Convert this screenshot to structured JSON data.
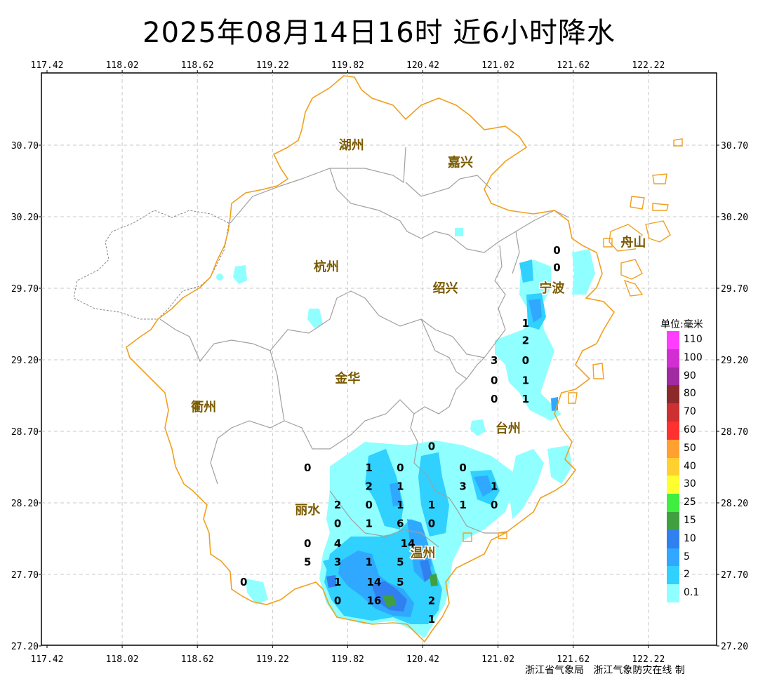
{
  "title": "2025年08月14日16时  近6小时降水",
  "axes": {
    "lon_ticks": [
      "117.42",
      "118.02",
      "118.62",
      "119.22",
      "119.82",
      "120.42",
      "121.02",
      "121.62",
      "122.22"
    ],
    "lat_ticks": [
      "30.70",
      "30.20",
      "29.70",
      "29.20",
      "28.70",
      "28.20",
      "27.70",
      "27.20"
    ],
    "grid": "dashed"
  },
  "cities": [
    {
      "name": "湖州",
      "lon": 119.85,
      "lat": 30.7
    },
    {
      "name": "嘉兴",
      "lon": 120.72,
      "lat": 30.58
    },
    {
      "name": "杭州",
      "lon": 119.65,
      "lat": 29.85
    },
    {
      "name": "绍兴",
      "lon": 120.6,
      "lat": 29.7
    },
    {
      "name": "宁波",
      "lon": 121.45,
      "lat": 29.7
    },
    {
      "name": "舟山",
      "lon": 122.1,
      "lat": 30.02
    },
    {
      "name": "金华",
      "lon": 119.82,
      "lat": 29.07
    },
    {
      "name": "衢州",
      "lon": 118.67,
      "lat": 28.87
    },
    {
      "name": "台州",
      "lon": 121.1,
      "lat": 28.72
    },
    {
      "name": "丽水",
      "lon": 119.5,
      "lat": 28.15
    },
    {
      "name": "温州",
      "lon": 120.42,
      "lat": 27.85
    }
  ],
  "stations": [
    {
      "v": "0",
      "lon": 121.49,
      "lat": 29.97
    },
    {
      "v": "0",
      "lon": 121.49,
      "lat": 29.85
    },
    {
      "v": "1",
      "lon": 121.24,
      "lat": 29.46
    },
    {
      "v": "2",
      "lon": 121.24,
      "lat": 29.34
    },
    {
      "v": "3",
      "lon": 120.99,
      "lat": 29.2
    },
    {
      "v": "0",
      "lon": 121.24,
      "lat": 29.2
    },
    {
      "v": "0",
      "lon": 120.99,
      "lat": 29.06
    },
    {
      "v": "1",
      "lon": 121.24,
      "lat": 29.06
    },
    {
      "v": "0",
      "lon": 120.99,
      "lat": 28.93
    },
    {
      "v": "1",
      "lon": 121.24,
      "lat": 28.93
    },
    {
      "v": "0",
      "lon": 120.49,
      "lat": 28.6
    },
    {
      "v": "0",
      "lon": 119.5,
      "lat": 28.45
    },
    {
      "v": "1",
      "lon": 119.99,
      "lat": 28.45
    },
    {
      "v": "0",
      "lon": 120.24,
      "lat": 28.45
    },
    {
      "v": "0",
      "lon": 120.74,
      "lat": 28.45
    },
    {
      "v": "2",
      "lon": 119.99,
      "lat": 28.32
    },
    {
      "v": "1",
      "lon": 120.24,
      "lat": 28.32
    },
    {
      "v": "3",
      "lon": 120.74,
      "lat": 28.32
    },
    {
      "v": "1",
      "lon": 120.99,
      "lat": 28.32
    },
    {
      "v": "2",
      "lon": 119.74,
      "lat": 28.19
    },
    {
      "v": "0",
      "lon": 119.99,
      "lat": 28.19
    },
    {
      "v": "1",
      "lon": 120.24,
      "lat": 28.19
    },
    {
      "v": "1",
      "lon": 120.49,
      "lat": 28.19
    },
    {
      "v": "1",
      "lon": 120.74,
      "lat": 28.19
    },
    {
      "v": "0",
      "lon": 120.99,
      "lat": 28.19
    },
    {
      "v": "0",
      "lon": 119.74,
      "lat": 28.06
    },
    {
      "v": "1",
      "lon": 119.99,
      "lat": 28.06
    },
    {
      "v": "6",
      "lon": 120.24,
      "lat": 28.06
    },
    {
      "v": "0",
      "lon": 120.49,
      "lat": 28.06
    },
    {
      "v": "0",
      "lon": 119.5,
      "lat": 27.92
    },
    {
      "v": "4",
      "lon": 119.74,
      "lat": 27.92
    },
    {
      "v": "14",
      "lon": 120.3,
      "lat": 27.92
    },
    {
      "v": "5",
      "lon": 119.5,
      "lat": 27.79
    },
    {
      "v": "3",
      "lon": 119.74,
      "lat": 27.79
    },
    {
      "v": "1",
      "lon": 119.99,
      "lat": 27.79
    },
    {
      "v": "5",
      "lon": 120.24,
      "lat": 27.79
    },
    {
      "v": "0",
      "lon": 118.99,
      "lat": 27.65
    },
    {
      "v": "1",
      "lon": 119.74,
      "lat": 27.65
    },
    {
      "v": "14",
      "lon": 120.03,
      "lat": 27.65
    },
    {
      "v": "5",
      "lon": 120.24,
      "lat": 27.65
    },
    {
      "v": "0",
      "lon": 119.74,
      "lat": 27.52
    },
    {
      "v": "16",
      "lon": 120.03,
      "lat": 27.52
    },
    {
      "v": "2",
      "lon": 120.49,
      "lat": 27.52
    },
    {
      "v": "1",
      "lon": 120.49,
      "lat": 27.39
    }
  ],
  "legend": {
    "title": "单位:毫米",
    "items": [
      {
        "label": "110",
        "color": "#ff3dff"
      },
      {
        "label": "100",
        "color": "#d22fd2"
      },
      {
        "label": "90",
        "color": "#a02aa0"
      },
      {
        "label": "80",
        "color": "#8c2a2a"
      },
      {
        "label": "70",
        "color": "#cc3030"
      },
      {
        "label": "60",
        "color": "#ff3030"
      },
      {
        "label": "50",
        "color": "#ffa030"
      },
      {
        "label": "40",
        "color": "#ffd030"
      },
      {
        "label": "30",
        "color": "#ffff30"
      },
      {
        "label": "25",
        "color": "#40ee40"
      },
      {
        "label": "15",
        "color": "#40a040"
      },
      {
        "label": "10",
        "color": "#3080f0"
      },
      {
        "label": "5",
        "color": "#30a8ff"
      },
      {
        "label": "2",
        "color": "#30d0ff"
      },
      {
        "label": "0.1",
        "color": "#90ffff"
      }
    ]
  },
  "colors": {
    "province_border": "#f0a020",
    "city_border": "#a0a0a0",
    "neighbor_border": "#888888",
    "city_label": "#7a5a00"
  },
  "credit": "浙江省气象局   浙江气象防灾在线 制"
}
